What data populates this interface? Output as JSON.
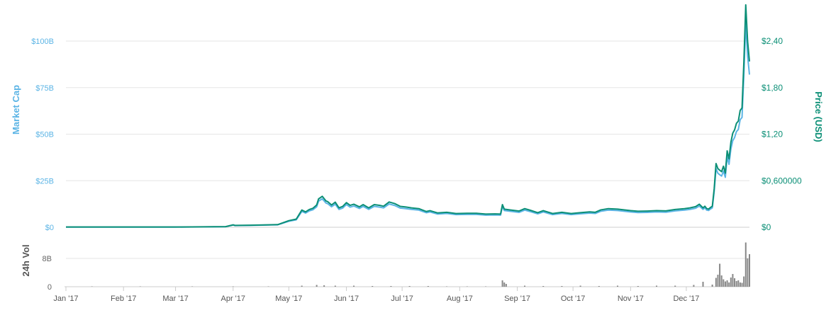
{
  "chart_data": {
    "type": "line",
    "colors": {
      "market_cap": "#5bb4e5",
      "price": "#0b8f76",
      "volume": "#888888",
      "grid": "#e6e6e6"
    },
    "x_tick_labels": [
      "Jan '17",
      "Feb '17",
      "Mar '17",
      "Apr '17",
      "May '17",
      "Jun '17",
      "Jul '17",
      "Aug '17",
      "Sep '17",
      "Oct '17",
      "Nov '17",
      "Dec '17"
    ],
    "x_range": [
      "2017-01-01",
      "2018-01-04"
    ],
    "grid": true,
    "legend": "none",
    "left_axis": {
      "label": "Market Cap",
      "ticks": [
        0,
        25,
        50,
        75,
        100
      ],
      "tick_labels": [
        "$0",
        "$25B",
        "$50B",
        "$75B",
        "$100B"
      ],
      "ylim": [
        0,
        100
      ]
    },
    "right_axis": {
      "label": "Price (USD)",
      "ticks": [
        0,
        0.6,
        1.2,
        1.8,
        2.4
      ],
      "tick_labels": [
        "$0",
        "$0,600000",
        "$1,20",
        "$1,80",
        "$2,40"
      ],
      "ylim": [
        0,
        2.4
      ]
    },
    "volume_axis": {
      "label": "24h Vol",
      "ticks": [
        0,
        8
      ],
      "tick_labels": [
        "0",
        "8B"
      ],
      "ylim": [
        0,
        8
      ]
    },
    "series": [
      {
        "name": "Market Cap",
        "unit": "USD billions",
        "x": [
          "2017-01-01",
          "2017-02-01",
          "2017-03-01",
          "2017-03-28",
          "2017-04-01",
          "2017-04-02",
          "2017-04-10",
          "2017-04-25",
          "2017-05-01",
          "2017-05-05",
          "2017-05-08",
          "2017-05-10",
          "2017-05-12",
          "2017-05-14",
          "2017-05-16",
          "2017-05-17",
          "2017-05-19",
          "2017-05-21",
          "2017-05-22",
          "2017-05-24",
          "2017-05-26",
          "2017-05-28",
          "2017-05-30",
          "2017-06-01",
          "2017-06-03",
          "2017-06-05",
          "2017-06-08",
          "2017-06-10",
          "2017-06-13",
          "2017-06-16",
          "2017-06-19",
          "2017-06-21",
          "2017-06-24",
          "2017-06-27",
          "2017-06-30",
          "2017-07-03",
          "2017-07-06",
          "2017-07-10",
          "2017-07-14",
          "2017-07-16",
          "2017-07-20",
          "2017-07-25",
          "2017-07-30",
          "2017-08-05",
          "2017-08-10",
          "2017-08-15",
          "2017-08-20",
          "2017-08-23",
          "2017-08-24",
          "2017-08-25",
          "2017-08-28",
          "2017-09-02",
          "2017-09-05",
          "2017-09-08",
          "2017-09-12",
          "2017-09-15",
          "2017-09-20",
          "2017-09-25",
          "2017-09-30",
          "2017-10-05",
          "2017-10-10",
          "2017-10-13",
          "2017-10-16",
          "2017-10-20",
          "2017-10-25",
          "2017-11-01",
          "2017-11-05",
          "2017-11-10",
          "2017-11-15",
          "2017-11-20",
          "2017-11-25",
          "2017-11-30",
          "2017-12-03",
          "2017-12-06",
          "2017-12-08",
          "2017-12-10",
          "2017-12-11",
          "2017-12-12",
          "2017-12-13",
          "2017-12-14",
          "2017-12-15",
          "2017-12-16",
          "2017-12-17",
          "2017-12-18",
          "2017-12-19",
          "2017-12-20",
          "2017-12-21",
          "2017-12-22",
          "2017-12-23",
          "2017-12-24",
          "2017-12-25",
          "2017-12-26",
          "2017-12-27",
          "2017-12-28",
          "2017-12-29",
          "2017-12-30",
          "2017-12-31",
          "2018-01-01",
          "2018-01-02",
          "2018-01-03",
          "2018-01-04"
        ],
        "values": [
          0.1,
          0.1,
          0.1,
          0.3,
          1.2,
          0.9,
          1.0,
          1.3,
          3.2,
          4.0,
          8.5,
          7.6,
          8.8,
          9.4,
          11.0,
          14.0,
          15.3,
          13.0,
          12.6,
          11.0,
          12.4,
          9.6,
          10.3,
          12.2,
          10.8,
          11.4,
          10.1,
          11.2,
          9.6,
          11.2,
          10.8,
          10.4,
          12.5,
          11.7,
          10.3,
          10.0,
          9.6,
          9.2,
          7.8,
          8.2,
          7.1,
          7.4,
          6.8,
          6.9,
          6.9,
          6.5,
          6.6,
          6.5,
          11.2,
          9.0,
          8.6,
          8.0,
          9.2,
          8.4,
          7.2,
          8.2,
          6.8,
          7.4,
          6.8,
          7.2,
          7.6,
          7.4,
          8.6,
          9.2,
          9.0,
          8.2,
          7.9,
          8.0,
          8.2,
          8.1,
          8.8,
          9.2,
          9.6,
          10.2,
          11.4,
          9.6,
          10.4,
          9.2,
          9.0,
          9.8,
          10.4,
          19.0,
          31.5,
          29.0,
          28.2,
          27.5,
          30.2,
          26.8,
          37.8,
          33.8,
          42.0,
          46.5,
          48.2,
          51.4,
          52.5,
          57.8,
          59.0,
          82.0,
          110.0,
          92.0,
          82.0
        ]
      },
      {
        "name": "Price (USD)",
        "unit": "USD",
        "x": [
          "2017-01-01",
          "2017-02-01",
          "2017-03-01",
          "2017-03-28",
          "2017-04-01",
          "2017-04-02",
          "2017-04-10",
          "2017-04-25",
          "2017-05-01",
          "2017-05-05",
          "2017-05-08",
          "2017-05-10",
          "2017-05-12",
          "2017-05-14",
          "2017-05-16",
          "2017-05-17",
          "2017-05-19",
          "2017-05-21",
          "2017-05-22",
          "2017-05-24",
          "2017-05-26",
          "2017-05-28",
          "2017-05-30",
          "2017-06-01",
          "2017-06-03",
          "2017-06-05",
          "2017-06-08",
          "2017-06-10",
          "2017-06-13",
          "2017-06-16",
          "2017-06-19",
          "2017-06-21",
          "2017-06-24",
          "2017-06-27",
          "2017-06-30",
          "2017-07-03",
          "2017-07-06",
          "2017-07-10",
          "2017-07-14",
          "2017-07-16",
          "2017-07-20",
          "2017-07-25",
          "2017-07-30",
          "2017-08-05",
          "2017-08-10",
          "2017-08-15",
          "2017-08-20",
          "2017-08-23",
          "2017-08-24",
          "2017-08-25",
          "2017-08-28",
          "2017-09-02",
          "2017-09-05",
          "2017-09-08",
          "2017-09-12",
          "2017-09-15",
          "2017-09-20",
          "2017-09-25",
          "2017-09-30",
          "2017-10-05",
          "2017-10-10",
          "2017-10-13",
          "2017-10-16",
          "2017-10-20",
          "2017-10-25",
          "2017-11-01",
          "2017-11-05",
          "2017-11-10",
          "2017-11-15",
          "2017-11-20",
          "2017-11-25",
          "2017-11-30",
          "2017-12-03",
          "2017-12-06",
          "2017-12-08",
          "2017-12-10",
          "2017-12-11",
          "2017-12-12",
          "2017-12-13",
          "2017-12-14",
          "2017-12-15",
          "2017-12-16",
          "2017-12-17",
          "2017-12-18",
          "2017-12-19",
          "2017-12-20",
          "2017-12-21",
          "2017-12-22",
          "2017-12-23",
          "2017-12-24",
          "2017-12-25",
          "2017-12-26",
          "2017-12-27",
          "2017-12-28",
          "2017-12-29",
          "2017-12-30",
          "2017-12-31",
          "2018-01-01",
          "2018-01-02",
          "2018-01-03",
          "2018-01-04"
        ],
        "values": [
          0.003,
          0.003,
          0.003,
          0.008,
          0.031,
          0.024,
          0.026,
          0.034,
          0.085,
          0.105,
          0.222,
          0.198,
          0.229,
          0.245,
          0.287,
          0.365,
          0.399,
          0.339,
          0.329,
          0.287,
          0.323,
          0.25,
          0.269,
          0.318,
          0.282,
          0.297,
          0.263,
          0.292,
          0.25,
          0.292,
          0.282,
          0.271,
          0.326,
          0.305,
          0.269,
          0.261,
          0.25,
          0.24,
          0.203,
          0.214,
          0.185,
          0.193,
          0.177,
          0.18,
          0.18,
          0.17,
          0.172,
          0.17,
          0.292,
          0.234,
          0.224,
          0.209,
          0.24,
          0.219,
          0.188,
          0.214,
          0.177,
          0.193,
          0.177,
          0.188,
          0.198,
          0.193,
          0.224,
          0.24,
          0.234,
          0.214,
          0.206,
          0.209,
          0.214,
          0.211,
          0.229,
          0.24,
          0.25,
          0.266,
          0.297,
          0.25,
          0.271,
          0.24,
          0.234,
          0.255,
          0.271,
          0.495,
          0.821,
          0.756,
          0.735,
          0.717,
          0.787,
          0.698,
          0.985,
          0.881,
          1.095,
          1.212,
          1.256,
          1.34,
          1.368,
          1.506,
          1.538,
          2.137,
          2.867,
          2.398,
          2.137
        ]
      },
      {
        "name": "24h Vol",
        "unit": "USD billions",
        "x": [
          "2017-01-15",
          "2017-02-10",
          "2017-03-10",
          "2017-04-01",
          "2017-04-20",
          "2017-05-08",
          "2017-05-16",
          "2017-05-20",
          "2017-05-26",
          "2017-06-05",
          "2017-06-15",
          "2017-06-25",
          "2017-07-05",
          "2017-07-15",
          "2017-07-25",
          "2017-08-05",
          "2017-08-15",
          "2017-08-24",
          "2017-08-25",
          "2017-08-26",
          "2017-09-05",
          "2017-09-15",
          "2017-09-25",
          "2017-10-05",
          "2017-10-15",
          "2017-10-25",
          "2017-11-05",
          "2017-11-15",
          "2017-11-25",
          "2017-12-05",
          "2017-12-10",
          "2017-12-15",
          "2017-12-17",
          "2017-12-18",
          "2017-12-19",
          "2017-12-20",
          "2017-12-21",
          "2017-12-22",
          "2017-12-23",
          "2017-12-24",
          "2017-12-25",
          "2017-12-26",
          "2017-12-27",
          "2017-12-28",
          "2017-12-29",
          "2017-12-30",
          "2017-12-31",
          "2018-01-01",
          "2018-01-02",
          "2018-01-03",
          "2018-01-04"
        ],
        "values": [
          0.05,
          0.05,
          0.05,
          0.1,
          0.1,
          0.3,
          0.5,
          0.4,
          0.3,
          0.3,
          0.2,
          0.2,
          0.2,
          0.2,
          0.1,
          0.1,
          0.1,
          1.8,
          1.2,
          0.8,
          0.3,
          0.2,
          0.2,
          0.3,
          0.2,
          0.3,
          0.2,
          0.3,
          0.3,
          0.5,
          1.4,
          0.6,
          2.5,
          3.4,
          6.5,
          3.2,
          2.1,
          1.5,
          1.8,
          1.2,
          2.6,
          3.6,
          2.4,
          1.6,
          1.8,
          1.2,
          1.1,
          2.9,
          12.5,
          8.0,
          9.2
        ]
      }
    ]
  }
}
